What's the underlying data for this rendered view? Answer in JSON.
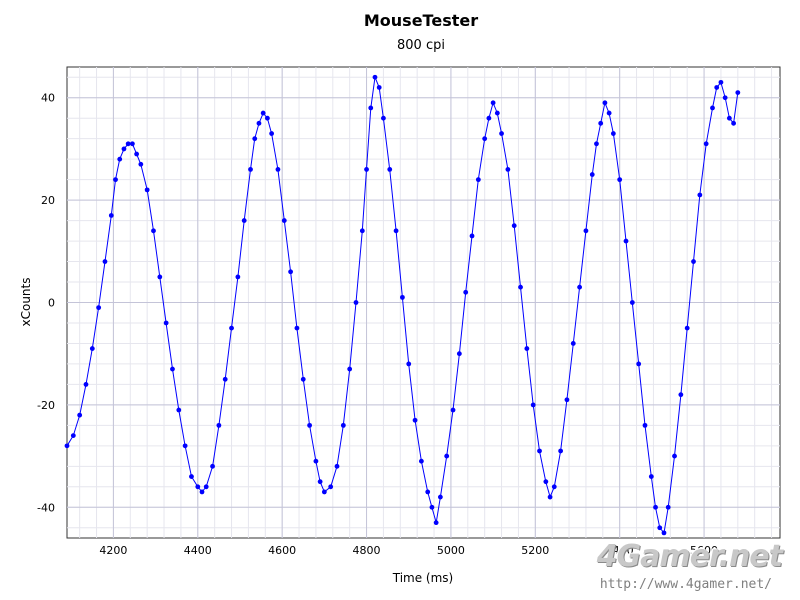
{
  "chart_data": {
    "type": "scatter",
    "title": "MouseTester",
    "subtitle": "800 cpi",
    "xlabel": "Time (ms)",
    "ylabel": "xCounts",
    "xlim": [
      4090,
      5780
    ],
    "ylim": [
      -46,
      46
    ],
    "x_ticks": [
      4200,
      4400,
      4600,
      4800,
      5000,
      5200,
      5400,
      5600
    ],
    "y_ticks": [
      -40,
      -20,
      0,
      20,
      40
    ],
    "grid": true,
    "series": [
      {
        "style": "points with connecting line",
        "color": "#0000ff",
        "points": [
          [
            4090,
            -28
          ],
          [
            4105,
            -26
          ],
          [
            4120,
            -22
          ],
          [
            4135,
            -16
          ],
          [
            4150,
            -9
          ],
          [
            4165,
            -1
          ],
          [
            4180,
            8
          ],
          [
            4195,
            17
          ],
          [
            4205,
            24
          ],
          [
            4215,
            28
          ],
          [
            4225,
            30
          ],
          [
            4235,
            31
          ],
          [
            4245,
            31
          ],
          [
            4255,
            29
          ],
          [
            4265,
            27
          ],
          [
            4280,
            22
          ],
          [
            4295,
            14
          ],
          [
            4310,
            5
          ],
          [
            4325,
            -4
          ],
          [
            4340,
            -13
          ],
          [
            4355,
            -21
          ],
          [
            4370,
            -28
          ],
          [
            4385,
            -34
          ],
          [
            4400,
            -36
          ],
          [
            4410,
            -37
          ],
          [
            4420,
            -36
          ],
          [
            4435,
            -32
          ],
          [
            4450,
            -24
          ],
          [
            4465,
            -15
          ],
          [
            4480,
            -5
          ],
          [
            4495,
            5
          ],
          [
            4510,
            16
          ],
          [
            4525,
            26
          ],
          [
            4535,
            32
          ],
          [
            4545,
            35
          ],
          [
            4555,
            37
          ],
          [
            4565,
            36
          ],
          [
            4575,
            33
          ],
          [
            4590,
            26
          ],
          [
            4605,
            16
          ],
          [
            4620,
            6
          ],
          [
            4635,
            -5
          ],
          [
            4650,
            -15
          ],
          [
            4665,
            -24
          ],
          [
            4680,
            -31
          ],
          [
            4690,
            -35
          ],
          [
            4700,
            -37
          ],
          [
            4715,
            -36
          ],
          [
            4730,
            -32
          ],
          [
            4745,
            -24
          ],
          [
            4760,
            -13
          ],
          [
            4775,
            0
          ],
          [
            4790,
            14
          ],
          [
            4800,
            26
          ],
          [
            4810,
            38
          ],
          [
            4820,
            44
          ],
          [
            4830,
            42
          ],
          [
            4840,
            36
          ],
          [
            4855,
            26
          ],
          [
            4870,
            14
          ],
          [
            4885,
            1
          ],
          [
            4900,
            -12
          ],
          [
            4915,
            -23
          ],
          [
            4930,
            -31
          ],
          [
            4945,
            -37
          ],
          [
            4955,
            -40
          ],
          [
            4965,
            -43
          ],
          [
            4975,
            -38
          ],
          [
            4990,
            -30
          ],
          [
            5005,
            -21
          ],
          [
            5020,
            -10
          ],
          [
            5035,
            2
          ],
          [
            5050,
            13
          ],
          [
            5065,
            24
          ],
          [
            5080,
            32
          ],
          [
            5090,
            36
          ],
          [
            5100,
            39
          ],
          [
            5110,
            37
          ],
          [
            5120,
            33
          ],
          [
            5135,
            26
          ],
          [
            5150,
            15
          ],
          [
            5165,
            3
          ],
          [
            5180,
            -9
          ],
          [
            5195,
            -20
          ],
          [
            5210,
            -29
          ],
          [
            5225,
            -35
          ],
          [
            5235,
            -38
          ],
          [
            5245,
            -36
          ],
          [
            5260,
            -29
          ],
          [
            5275,
            -19
          ],
          [
            5290,
            -8
          ],
          [
            5305,
            3
          ],
          [
            5320,
            14
          ],
          [
            5335,
            25
          ],
          [
            5345,
            31
          ],
          [
            5355,
            35
          ],
          [
            5365,
            39
          ],
          [
            5375,
            37
          ],
          [
            5385,
            33
          ],
          [
            5400,
            24
          ],
          [
            5415,
            12
          ],
          [
            5430,
            0
          ],
          [
            5445,
            -12
          ],
          [
            5460,
            -24
          ],
          [
            5475,
            -34
          ],
          [
            5485,
            -40
          ],
          [
            5495,
            -44
          ],
          [
            5505,
            -45
          ],
          [
            5515,
            -40
          ],
          [
            5530,
            -30
          ],
          [
            5545,
            -18
          ],
          [
            5560,
            -5
          ],
          [
            5575,
            8
          ],
          [
            5590,
            21
          ],
          [
            5605,
            31
          ],
          [
            5620,
            38
          ],
          [
            5630,
            42
          ],
          [
            5640,
            43
          ],
          [
            5650,
            40
          ],
          [
            5660,
            36
          ],
          [
            5670,
            35
          ],
          [
            5680,
            41
          ]
        ]
      }
    ]
  },
  "watermark": {
    "logo_text": "4Gamer.net",
    "url_text": "http://www.4gamer.net/"
  }
}
